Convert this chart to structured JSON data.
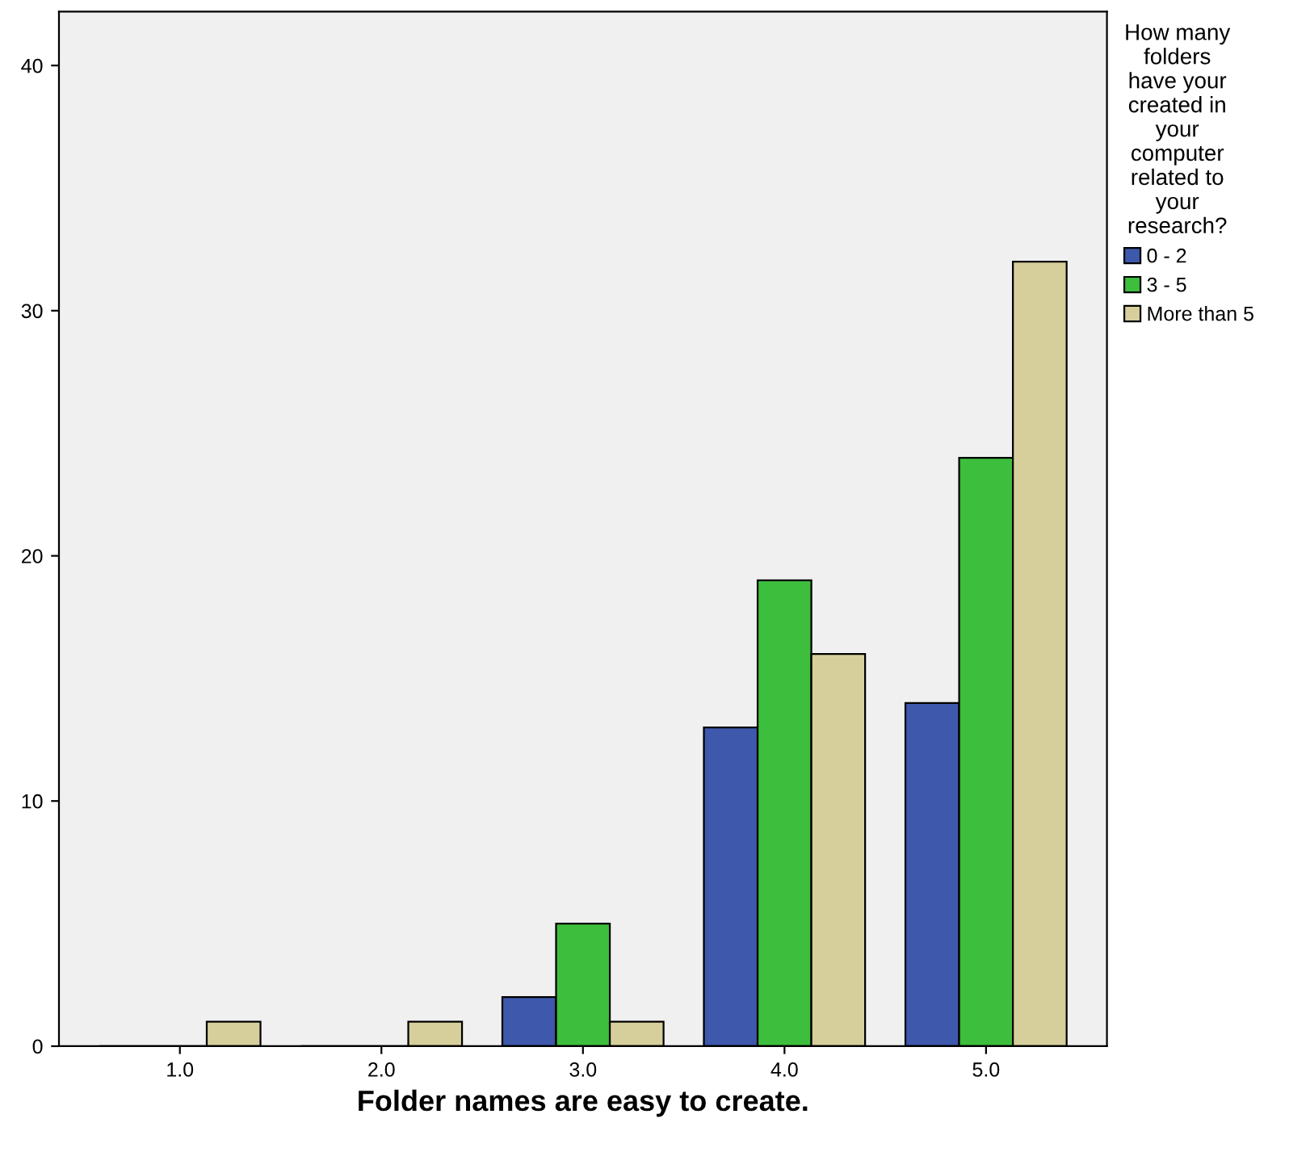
{
  "chart_data": {
    "type": "bar",
    "xlabel": "Folder names are easy to create.",
    "legend_title": "How many folders have your created in your computer related to your research?",
    "categories": [
      "1.0",
      "2.0",
      "3.0",
      "4.0",
      "5.0"
    ],
    "series": [
      {
        "name": "0 - 2",
        "color": "#3e58ac",
        "values": [
          0,
          0,
          2,
          13,
          14
        ]
      },
      {
        "name": "3 - 5",
        "color": "#3dbe3d",
        "values": [
          0,
          0,
          5,
          19,
          24
        ]
      },
      {
        "name": "More than 5",
        "color": "#d6cf9b",
        "values": [
          1,
          1,
          1,
          16,
          32
        ]
      }
    ],
    "ylim": [
      0,
      42.2
    ],
    "yticks": [
      0,
      10,
      20,
      30,
      40
    ],
    "grid": false,
    "legend": "right"
  }
}
